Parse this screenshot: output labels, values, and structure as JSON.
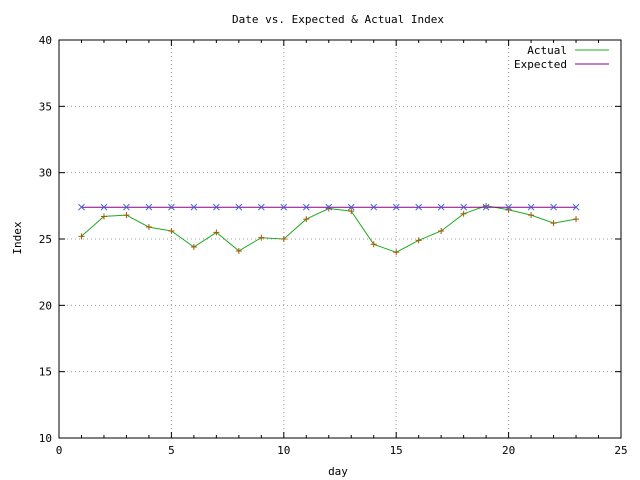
{
  "chart_data": {
    "type": "line",
    "title": "Date vs. Expected & Actual Index",
    "xlabel": "day",
    "ylabel": "Index",
    "xlim": [
      0,
      25
    ],
    "ylim": [
      10,
      40
    ],
    "x_ticks": [
      0,
      5,
      10,
      15,
      20,
      25
    ],
    "y_ticks": [
      10,
      15,
      20,
      25,
      30,
      35,
      40
    ],
    "grid": true,
    "legend_position": "top-right",
    "series": [
      {
        "name": "Actual",
        "color": "#22aa22",
        "marker": "plus",
        "marker_color": "#aa5500",
        "x": [
          1,
          2,
          3,
          4,
          5,
          6,
          7,
          8,
          9,
          10,
          11,
          12,
          13,
          14,
          15,
          16,
          17,
          18,
          19,
          20,
          21,
          22,
          23
        ],
        "y": [
          25.2,
          26.7,
          26.8,
          25.9,
          25.6,
          24.4,
          25.5,
          24.1,
          25.1,
          25.0,
          26.5,
          27.3,
          27.1,
          24.6,
          24.0,
          24.9,
          25.6,
          26.9,
          27.5,
          27.2,
          26.8,
          26.2,
          26.5
        ]
      },
      {
        "name": "Expected",
        "color": "#880088",
        "marker": "cross",
        "marker_color": "#4466dd",
        "x": [
          1,
          2,
          3,
          4,
          5,
          6,
          7,
          8,
          9,
          10,
          11,
          12,
          13,
          14,
          15,
          16,
          17,
          18,
          19,
          20,
          21,
          22,
          23
        ],
        "y": [
          27.4,
          27.4,
          27.4,
          27.4,
          27.4,
          27.4,
          27.4,
          27.4,
          27.4,
          27.4,
          27.4,
          27.4,
          27.4,
          27.4,
          27.4,
          27.4,
          27.4,
          27.4,
          27.4,
          27.4,
          27.4,
          27.4,
          27.4
        ]
      }
    ]
  }
}
